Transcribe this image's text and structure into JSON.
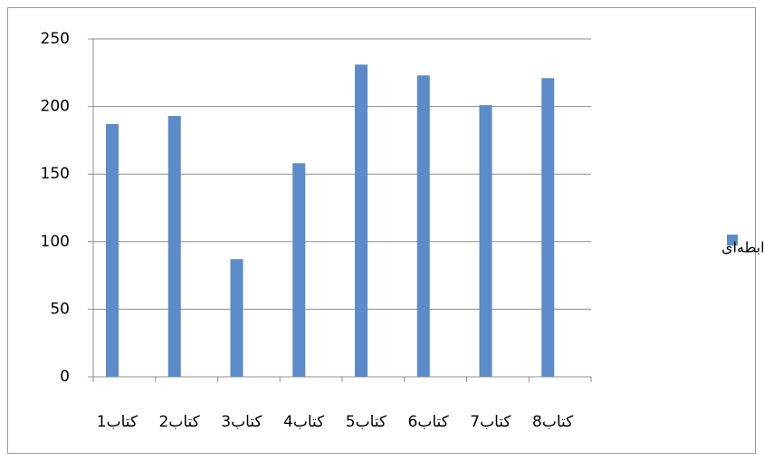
{
  "chart_data": {
    "type": "bar",
    "categories": [
      "کتاب1",
      "کتاب2",
      "کتاب3",
      "کتاب4",
      "کتاب5",
      "کتاب6",
      "کتاب7",
      "کتاب8"
    ],
    "series": [
      {
        "name": "فرایند رابطه‌ای",
        "color": "#5b8bc9",
        "values": [
          187,
          193,
          87,
          158,
          231,
          223,
          201,
          221
        ]
      }
    ],
    "ylim": [
      0,
      250
    ],
    "yticks": [
      0,
      50,
      100,
      150,
      200,
      250
    ],
    "grid": true,
    "legend": "right"
  }
}
